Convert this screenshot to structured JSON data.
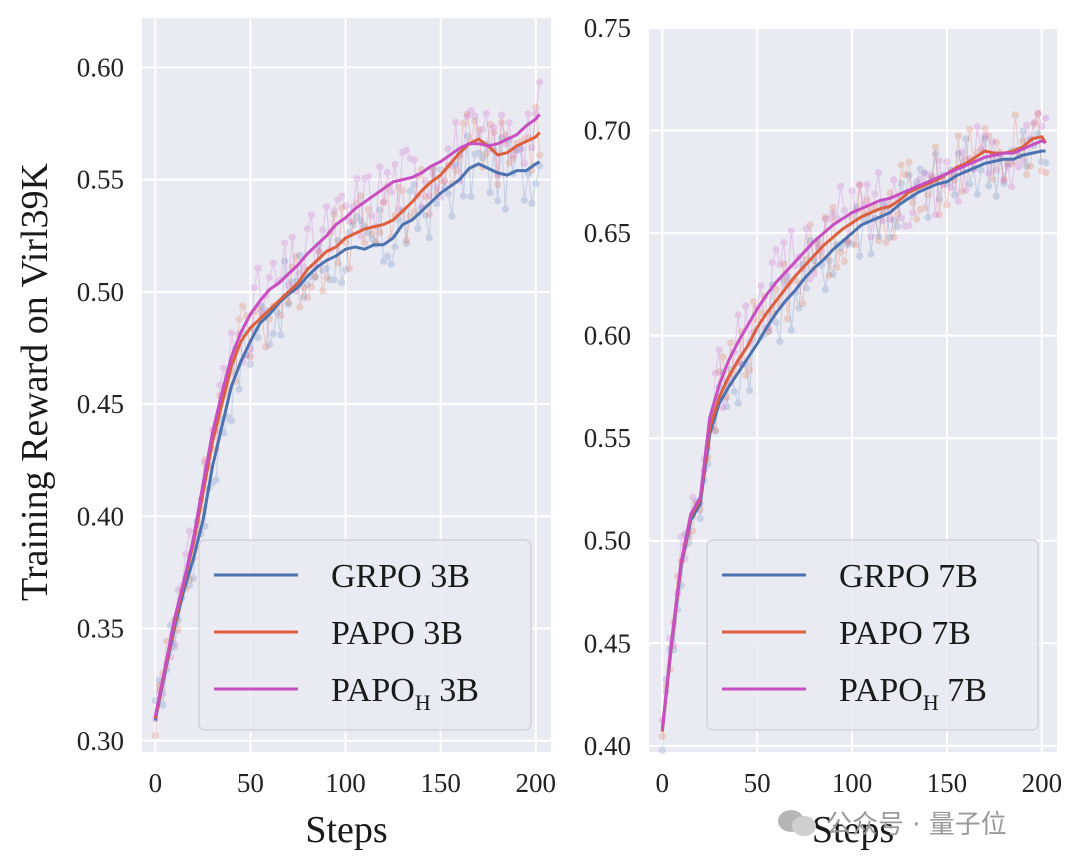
{
  "y_axis_title": "Training Reward on Virl39K",
  "watermark": {
    "text": "公众号 · 量子位",
    "icon": "wechat-icon"
  },
  "colors": {
    "GRPO": "#4c72b0",
    "PAPO": "#dd5f3e",
    "PAPO_H": "#c84fc1",
    "background": "#eaeaf2",
    "grid": "#ffffff"
  },
  "chart_data": [
    {
      "type": "line",
      "title": "",
      "xlabel": "Steps",
      "ylabel": "Training Reward on Virl39K",
      "xlim": [
        -7,
        208
      ],
      "ylim": [
        0.295,
        0.622
      ],
      "xticks": [
        0,
        50,
        100,
        150,
        200
      ],
      "xtick_labels": [
        "0",
        "50",
        "100",
        "150",
        "200"
      ],
      "yticks": [
        0.3,
        0.35,
        0.4,
        0.45,
        0.5,
        0.55,
        0.6
      ],
      "ytick_labels": [
        "0.30",
        "0.35",
        "0.40",
        "0.45",
        "0.50",
        "0.55",
        "0.60"
      ],
      "grid": true,
      "legend_position": "lower-right",
      "series": [
        {
          "key": "GRPO",
          "name": "GRPO 3B",
          "legend_main": "GRPO 3B",
          "legend_sub": "",
          "legend_tail": "",
          "x": [
            0,
            5,
            10,
            15,
            20,
            25,
            30,
            35,
            40,
            45,
            50,
            55,
            60,
            65,
            70,
            75,
            80,
            85,
            90,
            95,
            100,
            105,
            110,
            115,
            120,
            125,
            130,
            135,
            140,
            145,
            150,
            155,
            160,
            165,
            170,
            175,
            180,
            185,
            190,
            195,
            200,
            202
          ],
          "y": [
            0.309,
            0.33,
            0.35,
            0.367,
            0.381,
            0.398,
            0.422,
            0.44,
            0.458,
            0.469,
            0.478,
            0.486,
            0.49,
            0.495,
            0.499,
            0.502,
            0.507,
            0.511,
            0.514,
            0.516,
            0.519,
            0.52,
            0.519,
            0.521,
            0.521,
            0.524,
            0.53,
            0.532,
            0.536,
            0.54,
            0.544,
            0.547,
            0.55,
            0.555,
            0.557,
            0.555,
            0.553,
            0.552,
            0.554,
            0.554,
            0.557,
            0.558
          ]
        },
        {
          "key": "PAPO",
          "name": "PAPO 3B",
          "legend_main": "PAPO 3B",
          "legend_sub": "",
          "legend_tail": "",
          "x": [
            0,
            5,
            10,
            15,
            20,
            25,
            30,
            35,
            40,
            45,
            50,
            55,
            60,
            65,
            70,
            75,
            80,
            85,
            90,
            95,
            100,
            105,
            110,
            115,
            120,
            125,
            130,
            135,
            140,
            145,
            150,
            155,
            160,
            165,
            170,
            175,
            180,
            185,
            190,
            195,
            200,
            202
          ],
          "y": [
            0.31,
            0.331,
            0.352,
            0.37,
            0.388,
            0.41,
            0.433,
            0.45,
            0.467,
            0.478,
            0.484,
            0.488,
            0.492,
            0.496,
            0.5,
            0.504,
            0.51,
            0.514,
            0.518,
            0.52,
            0.524,
            0.526,
            0.528,
            0.529,
            0.53,
            0.532,
            0.536,
            0.54,
            0.545,
            0.549,
            0.552,
            0.557,
            0.562,
            0.566,
            0.568,
            0.565,
            0.561,
            0.562,
            0.565,
            0.567,
            0.569,
            0.571
          ]
        },
        {
          "key": "PAPO_H",
          "name": "PAPO_H 3B",
          "legend_main": "PAPO",
          "legend_sub": "H",
          "legend_tail": " 3B",
          "x": [
            0,
            5,
            10,
            15,
            20,
            25,
            30,
            35,
            40,
            45,
            50,
            55,
            60,
            65,
            70,
            75,
            80,
            85,
            90,
            95,
            100,
            105,
            110,
            115,
            120,
            125,
            130,
            135,
            140,
            145,
            150,
            155,
            160,
            165,
            170,
            175,
            180,
            185,
            190,
            195,
            200,
            202
          ],
          "y": [
            0.311,
            0.332,
            0.354,
            0.371,
            0.39,
            0.414,
            0.437,
            0.455,
            0.471,
            0.482,
            0.49,
            0.496,
            0.501,
            0.504,
            0.508,
            0.512,
            0.517,
            0.521,
            0.525,
            0.53,
            0.533,
            0.537,
            0.54,
            0.543,
            0.546,
            0.549,
            0.55,
            0.551,
            0.553,
            0.556,
            0.558,
            0.561,
            0.564,
            0.566,
            0.566,
            0.565,
            0.566,
            0.568,
            0.57,
            0.574,
            0.577,
            0.579
          ]
        }
      ]
    },
    {
      "type": "line",
      "title": "",
      "xlabel": "Steps",
      "ylabel": "",
      "xlim": [
        -7,
        208
      ],
      "ylim": [
        0.397,
        0.75
      ],
      "xticks": [
        0,
        50,
        100,
        150,
        200
      ],
      "xtick_labels": [
        "0",
        "50",
        "100",
        "150",
        "200"
      ],
      "yticks": [
        0.4,
        0.45,
        0.5,
        0.55,
        0.6,
        0.65,
        0.7,
        0.75
      ],
      "ytick_labels": [
        "0.40",
        "0.45",
        "0.50",
        "0.55",
        "0.60",
        "0.65",
        "0.70",
        "0.75"
      ],
      "grid": true,
      "legend_position": "lower-right",
      "series": [
        {
          "key": "GRPO",
          "name": "GRPO 7B",
          "legend_main": "GRPO 7B",
          "legend_sub": "",
          "legend_tail": "",
          "x": [
            0,
            5,
            10,
            15,
            20,
            25,
            30,
            35,
            40,
            45,
            50,
            55,
            60,
            65,
            70,
            75,
            80,
            85,
            90,
            95,
            100,
            105,
            110,
            115,
            120,
            125,
            130,
            135,
            140,
            145,
            150,
            155,
            160,
            165,
            170,
            175,
            180,
            185,
            190,
            195,
            200,
            202
          ],
          "y": [
            0.407,
            0.45,
            0.488,
            0.51,
            0.518,
            0.552,
            0.567,
            0.575,
            0.582,
            0.589,
            0.596,
            0.604,
            0.611,
            0.617,
            0.622,
            0.628,
            0.633,
            0.637,
            0.642,
            0.646,
            0.65,
            0.654,
            0.656,
            0.658,
            0.66,
            0.664,
            0.667,
            0.67,
            0.672,
            0.674,
            0.675,
            0.678,
            0.68,
            0.682,
            0.684,
            0.685,
            0.686,
            0.686,
            0.688,
            0.689,
            0.69,
            0.69
          ]
        },
        {
          "key": "PAPO",
          "name": "PAPO 7B",
          "legend_main": "PAPO 7B",
          "legend_sub": "",
          "legend_tail": "",
          "x": [
            0,
            5,
            10,
            15,
            20,
            25,
            30,
            35,
            40,
            45,
            50,
            55,
            60,
            65,
            70,
            75,
            80,
            85,
            90,
            95,
            100,
            105,
            110,
            115,
            120,
            125,
            130,
            135,
            140,
            145,
            150,
            155,
            160,
            165,
            170,
            175,
            180,
            185,
            190,
            195,
            200,
            202
          ],
          "y": [
            0.407,
            0.451,
            0.489,
            0.512,
            0.52,
            0.555,
            0.57,
            0.58,
            0.588,
            0.595,
            0.604,
            0.611,
            0.617,
            0.623,
            0.629,
            0.634,
            0.639,
            0.644,
            0.648,
            0.652,
            0.655,
            0.658,
            0.66,
            0.662,
            0.663,
            0.666,
            0.67,
            0.672,
            0.674,
            0.676,
            0.679,
            0.682,
            0.684,
            0.687,
            0.69,
            0.689,
            0.689,
            0.69,
            0.692,
            0.696,
            0.697,
            0.694
          ]
        },
        {
          "key": "PAPO_H",
          "name": "PAPO_H 7B",
          "legend_main": "PAPO",
          "legend_sub": "H",
          "legend_tail": " 7B",
          "x": [
            0,
            5,
            10,
            15,
            20,
            25,
            30,
            35,
            40,
            45,
            50,
            55,
            60,
            65,
            70,
            75,
            80,
            85,
            90,
            95,
            100,
            105,
            110,
            115,
            120,
            125,
            130,
            135,
            140,
            145,
            150,
            155,
            160,
            165,
            170,
            175,
            180,
            185,
            190,
            195,
            200,
            202
          ],
          "y": [
            0.408,
            0.452,
            0.49,
            0.513,
            0.521,
            0.56,
            0.576,
            0.588,
            0.597,
            0.605,
            0.613,
            0.62,
            0.626,
            0.631,
            0.636,
            0.641,
            0.646,
            0.65,
            0.654,
            0.657,
            0.66,
            0.662,
            0.664,
            0.666,
            0.667,
            0.669,
            0.671,
            0.673,
            0.675,
            0.677,
            0.679,
            0.681,
            0.683,
            0.685,
            0.687,
            0.688,
            0.689,
            0.689,
            0.691,
            0.693,
            0.695,
            0.694
          ]
        }
      ]
    }
  ]
}
